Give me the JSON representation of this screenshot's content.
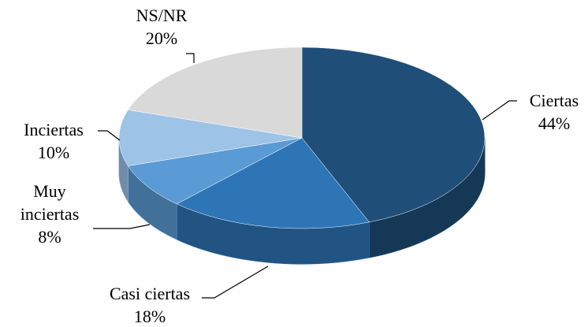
{
  "chart_data": {
    "type": "pie",
    "categories": [
      "Ciertas",
      "Casi ciertas",
      "Muy inciertas",
      "Inciertas",
      "NS/NR"
    ],
    "values": [
      44,
      18,
      8,
      10,
      20
    ],
    "value_labels": [
      "44%",
      "18%",
      "8%",
      "10%",
      "20%"
    ],
    "colors": [
      "#1f4e79",
      "#2e75b6",
      "#5b9bd5",
      "#9dc3e6",
      "#d9d9d9"
    ]
  }
}
